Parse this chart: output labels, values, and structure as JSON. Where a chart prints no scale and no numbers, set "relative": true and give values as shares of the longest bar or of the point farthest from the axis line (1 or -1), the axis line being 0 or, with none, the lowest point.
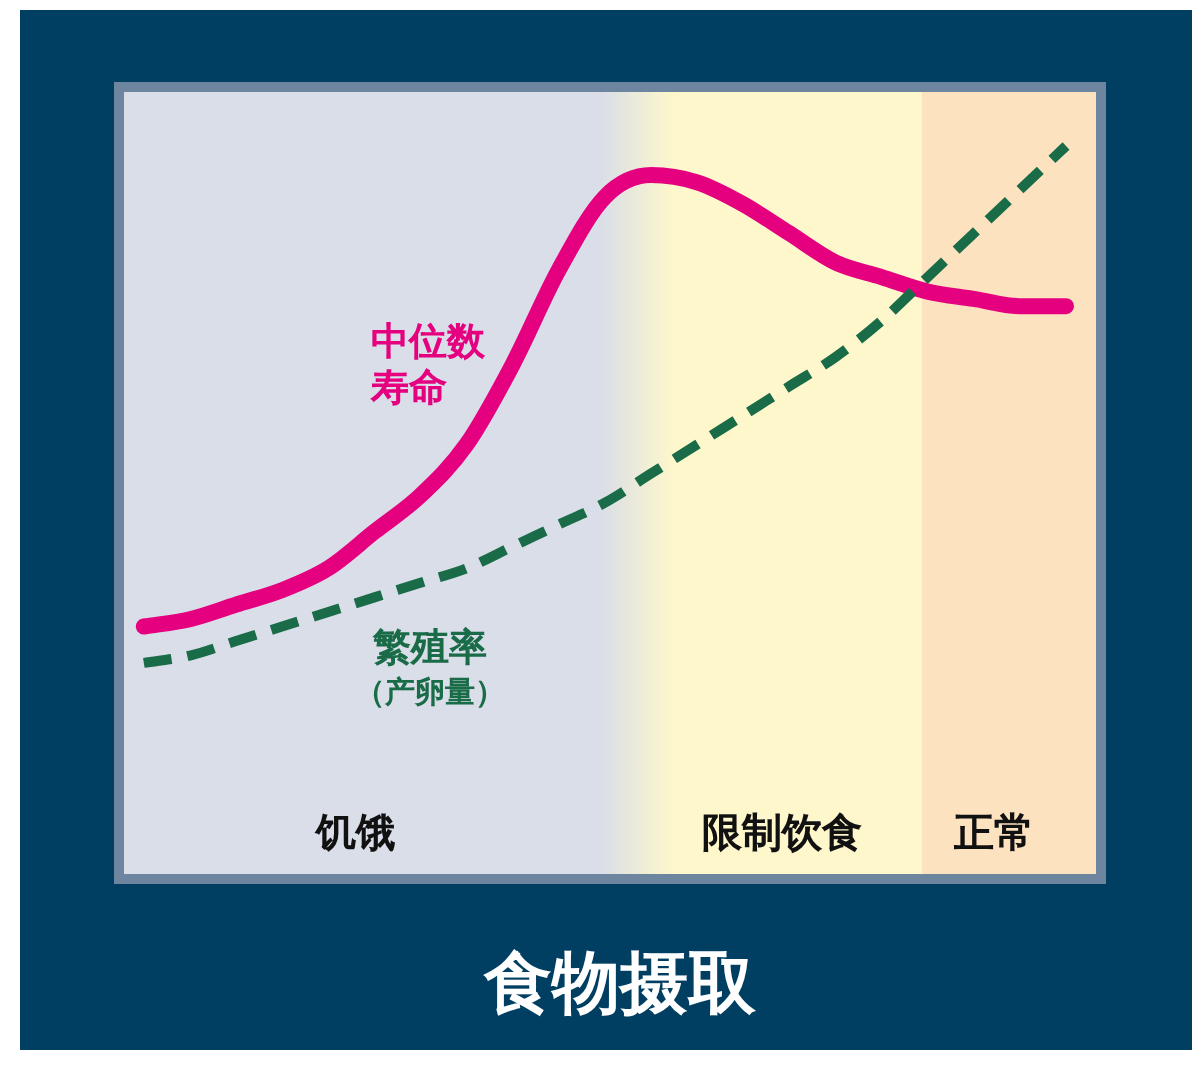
{
  "chart_data": {
    "type": "line",
    "relative": true,
    "xlabel": "食物摄取",
    "categories": [
      null,
      null,
      null,
      null,
      null,
      null,
      null,
      null,
      null,
      null,
      null,
      null,
      null,
      null,
      null,
      null,
      null,
      null,
      null,
      null,
      null
    ],
    "series": [
      {
        "name": "中位数寿命",
        "color": "#e5007f",
        "line_style": "solid",
        "values": [
          0.34,
          0.35,
          0.37,
          0.39,
          0.42,
          0.47,
          0.52,
          0.59,
          0.7,
          0.83,
          0.93,
          0.96,
          0.95,
          0.92,
          0.88,
          0.84,
          0.82,
          0.8,
          0.79,
          0.78,
          0.78
        ]
      },
      {
        "name": "繁殖率（产卵量）",
        "color": "#1a6c48",
        "line_style": "dashed",
        "values": [
          0.29,
          0.3,
          0.32,
          0.34,
          0.36,
          0.38,
          0.4,
          0.42,
          0.45,
          0.48,
          0.51,
          0.55,
          0.59,
          0.63,
          0.67,
          0.71,
          0.76,
          0.82,
          0.88,
          0.94,
          1
        ]
      }
    ],
    "annotations": [
      "饥饿",
      "限制饮食",
      "正常"
    ],
    "legend": false,
    "grid": false,
    "marker": "none"
  }
}
